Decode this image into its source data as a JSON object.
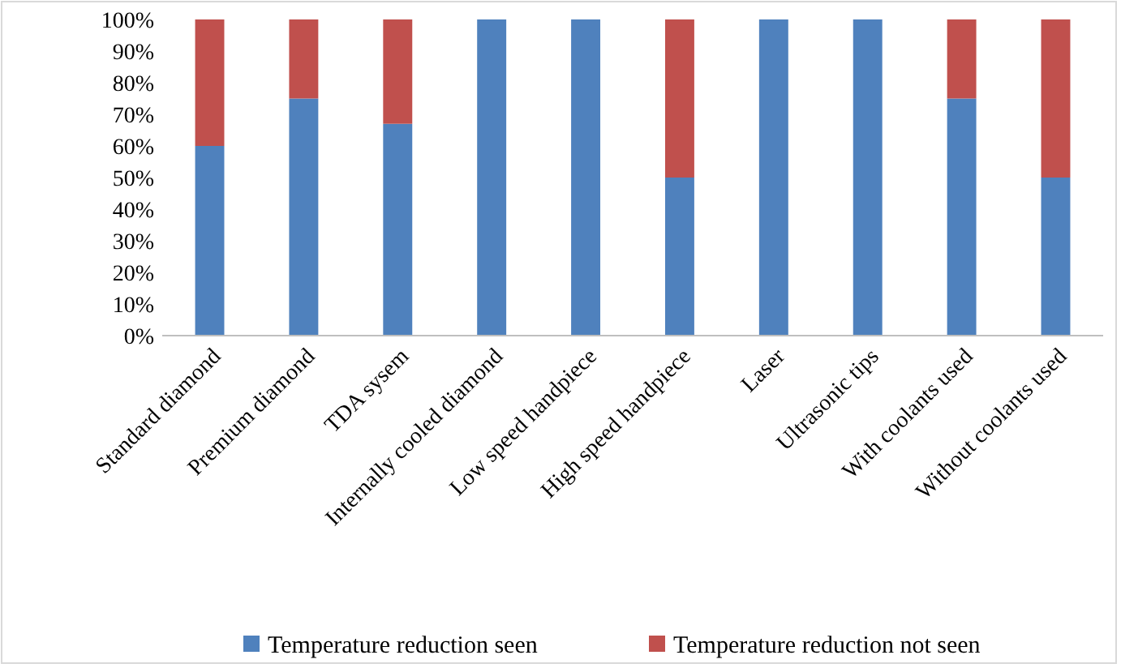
{
  "chart_data": {
    "type": "bar",
    "stacked": true,
    "categories": [
      "Standard diamond",
      "Premium diamond",
      "TDA sysem",
      "Internally cooled diamond",
      "Low speed handpiece",
      "High speed handpiece",
      "Laser",
      "Ultrasonic tips",
      "With coolants used",
      "Without coolants used"
    ],
    "series": [
      {
        "name": "Temperature reduction seen",
        "color": "#4f81bd",
        "values": [
          60,
          75,
          67,
          100,
          100,
          50,
          100,
          100,
          75,
          50
        ]
      },
      {
        "name": "Temperature reduction not seen",
        "color": "#c0504d",
        "values": [
          40,
          25,
          33,
          0,
          0,
          50,
          0,
          0,
          25,
          50
        ]
      }
    ],
    "ylim": [
      0,
      100
    ],
    "yticks": [
      {
        "value": 0,
        "label": "0%"
      },
      {
        "value": 10,
        "label": "10%"
      },
      {
        "value": 20,
        "label": "20%"
      },
      {
        "value": 30,
        "label": "30%"
      },
      {
        "value": 40,
        "label": "40%"
      },
      {
        "value": 50,
        "label": "50%"
      },
      {
        "value": 60,
        "label": "60%"
      },
      {
        "value": 70,
        "label": "70%"
      },
      {
        "value": 80,
        "label": "80%"
      },
      {
        "value": 90,
        "label": "90%"
      },
      {
        "value": 100,
        "label": "100%"
      }
    ],
    "legend": "bottom"
  }
}
